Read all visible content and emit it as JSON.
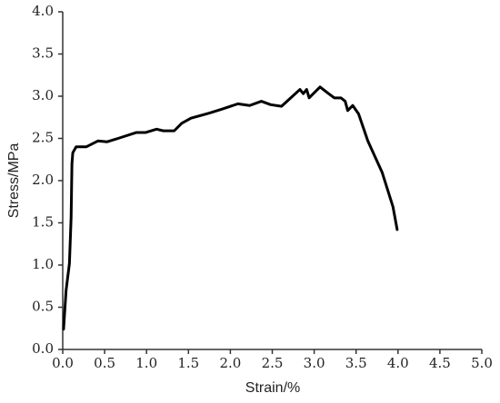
{
  "chart_data": {
    "type": "line",
    "xlabel": "Strain/%",
    "ylabel": "Stress/MPa",
    "x": [
      0.01,
      0.04,
      0.08,
      0.1,
      0.11,
      0.12,
      0.16,
      0.28,
      0.42,
      0.53,
      0.66,
      0.88,
      0.99,
      1.12,
      1.2,
      1.33,
      1.42,
      1.53,
      1.75,
      1.91,
      2.09,
      2.23,
      2.37,
      2.48,
      2.61,
      2.72,
      2.83,
      2.87,
      2.91,
      2.94,
      3.07,
      3.16,
      3.24,
      3.32,
      3.37,
      3.4,
      3.46,
      3.53,
      3.64,
      3.81,
      3.94,
      3.99
    ],
    "values": [
      0.24,
      0.7,
      1.02,
      1.56,
      2.2,
      2.33,
      2.4,
      2.4,
      2.47,
      2.46,
      2.5,
      2.57,
      2.57,
      2.61,
      2.59,
      2.59,
      2.68,
      2.74,
      2.8,
      2.85,
      2.91,
      2.89,
      2.94,
      2.9,
      2.88,
      2.98,
      3.08,
      3.03,
      3.08,
      2.98,
      3.11,
      3.04,
      2.98,
      2.98,
      2.94,
      2.83,
      2.89,
      2.79,
      2.47,
      2.1,
      1.69,
      1.42
    ],
    "color": "#000000",
    "xlim": [
      0,
      5
    ],
    "ylim": [
      0,
      4
    ],
    "xticks": [
      {
        "value": 0,
        "label": "0.0"
      },
      0.5,
      {
        "value": 1,
        "label": "1.0"
      },
      1.5,
      {
        "value": 2,
        "label": "2.0"
      },
      2.5,
      {
        "value": 3,
        "label": "3.0"
      },
      3.5,
      {
        "value": 4,
        "label": "4.0"
      },
      4.5,
      {
        "value": 5,
        "label": "5.0"
      }
    ],
    "yticks": [
      {
        "value": 0,
        "label": "0.0"
      },
      0.5,
      {
        "value": 1,
        "label": "1.0"
      },
      1.5,
      {
        "value": 2,
        "label": "2.0"
      },
      2.5,
      {
        "value": 3,
        "label": "3.0"
      },
      3.5,
      {
        "value": 4,
        "label": "4.0"
      }
    ],
    "grid": false
  }
}
